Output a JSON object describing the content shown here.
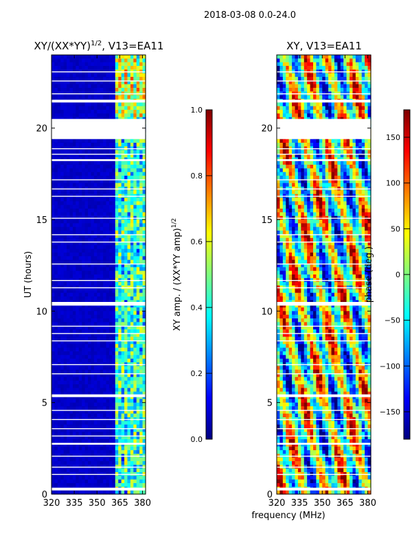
{
  "figure": {
    "suptitle": "2018-03-08 0.0-24.0",
    "xlabel": "frequency (MHz)"
  },
  "chart_data": [
    {
      "type": "heatmap",
      "title": "XY/(XX*YY)",
      "title_sup": "1/2",
      "title_tail": ", V13=EA11",
      "xlabel": "frequency (MHz)",
      "ylabel": "UT (hours)",
      "xlim": [
        320,
        382
      ],
      "ylim": [
        0,
        24
      ],
      "xticks": [
        320,
        335,
        350,
        365,
        380
      ],
      "yticks": [
        0,
        5,
        10,
        15,
        20
      ],
      "colormap": "jet",
      "colorbar": {
        "label": "XY amp. / (XX*YY amp)",
        "label_sup": "1/2",
        "range": [
          0.0,
          1.0
        ],
        "ticks": [
          "0.0",
          "0.2",
          "0.4",
          "0.6",
          "0.8",
          "1.0"
        ],
        "tick_values": [
          0.0,
          0.2,
          0.4,
          0.6,
          0.8,
          1.0
        ]
      },
      "flagged_hours": [
        [
          19.4,
          20.5
        ],
        [
          10.3,
          10.5
        ],
        [
          21.4,
          21.55
        ],
        [
          5.3,
          5.45
        ],
        [
          0.2,
          0.35
        ],
        [
          18.2,
          18.3
        ],
        [
          2.7,
          2.8
        ]
      ],
      "active_band_mhz": [
        362,
        382
      ]
    },
    {
      "type": "heatmap",
      "title": "XY, V13=EA11",
      "xlabel": "frequency (MHz)",
      "ylabel": "",
      "xlim": [
        320,
        382
      ],
      "ylim": [
        0,
        24
      ],
      "xticks": [
        320,
        335,
        350,
        365,
        380
      ],
      "yticks": [
        0,
        5,
        10,
        15,
        20
      ],
      "colormap": "jet",
      "colorbar": {
        "label": "phase (deg.)",
        "range": [
          -180,
          180
        ],
        "ticks": [
          "−150",
          "−100",
          "−50",
          "0",
          "50",
          "100",
          "150"
        ],
        "tick_values": [
          -150,
          -100,
          -50,
          0,
          50,
          100,
          150
        ]
      },
      "flagged_hours": [
        [
          19.4,
          20.5
        ],
        [
          10.3,
          10.5
        ],
        [
          21.4,
          21.55
        ],
        [
          5.3,
          5.45
        ],
        [
          0.2,
          0.35
        ],
        [
          18.2,
          18.3
        ],
        [
          2.7,
          2.8
        ]
      ]
    }
  ]
}
